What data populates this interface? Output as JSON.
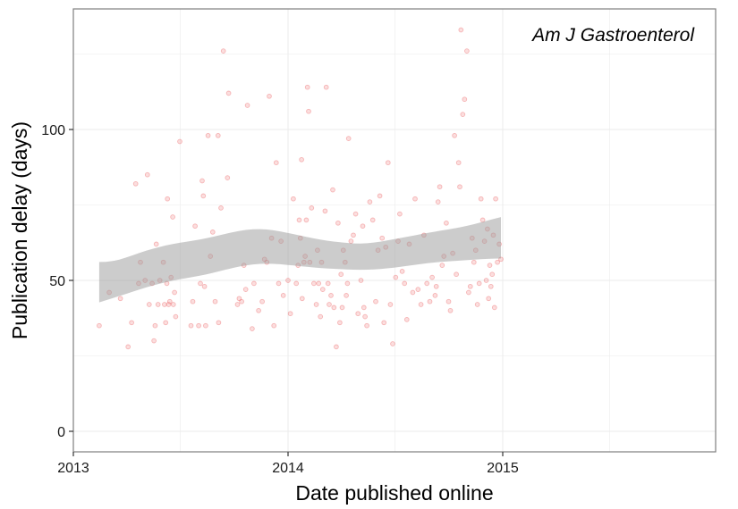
{
  "chart_data": {
    "type": "scatter",
    "annotation": "Am J Gastroenterol",
    "xlabel": "Date published online",
    "ylabel": "Publication delay (days)",
    "x_ticks": [
      {
        "value": "2013-01-01",
        "label": "2013"
      },
      {
        "value": "2014-01-01",
        "label": "2014"
      },
      {
        "value": "2015-01-01",
        "label": "2015"
      }
    ],
    "y_ticks": [
      {
        "value": 0,
        "label": "0"
      },
      {
        "value": 50,
        "label": "50"
      },
      {
        "value": 100,
        "label": "100"
      }
    ],
    "xlim": [
      "2013-01-01",
      "2015-12-31"
    ],
    "ylim": [
      -7,
      140
    ],
    "grid": true,
    "colors": {
      "points": "#e8474a",
      "ribbon": "#999999",
      "panel_border": "#7f7f7f",
      "grid": "#ebebeb"
    },
    "points": [
      [
        "2013-02-14",
        35
      ],
      [
        "2013-03-03",
        46
      ],
      [
        "2013-03-22",
        44
      ],
      [
        "2013-04-04",
        28
      ],
      [
        "2013-04-10",
        36
      ],
      [
        "2013-04-17",
        82
      ],
      [
        "2013-04-22",
        49
      ],
      [
        "2013-04-25",
        56
      ],
      [
        "2013-05-03",
        50
      ],
      [
        "2013-05-07",
        85
      ],
      [
        "2013-05-10",
        42
      ],
      [
        "2013-05-15",
        49
      ],
      [
        "2013-05-18",
        30
      ],
      [
        "2013-05-20",
        35
      ],
      [
        "2013-05-22",
        62
      ],
      [
        "2013-05-25",
        42
      ],
      [
        "2013-05-28",
        50
      ],
      [
        "2013-06-03",
        56
      ],
      [
        "2013-06-05",
        42
      ],
      [
        "2013-06-07",
        36
      ],
      [
        "2013-06-09",
        49
      ],
      [
        "2013-06-10",
        77
      ],
      [
        "2013-06-12",
        42
      ],
      [
        "2013-06-14",
        43
      ],
      [
        "2013-06-16",
        51
      ],
      [
        "2013-06-19",
        71
      ],
      [
        "2013-06-20",
        42
      ],
      [
        "2013-06-22",
        46
      ],
      [
        "2013-06-24",
        38
      ],
      [
        "2013-07-01",
        96
      ],
      [
        "2013-07-20",
        35
      ],
      [
        "2013-07-23",
        43
      ],
      [
        "2013-07-27",
        68
      ],
      [
        "2013-08-02",
        35
      ],
      [
        "2013-08-05",
        49
      ],
      [
        "2013-08-08",
        83
      ],
      [
        "2013-08-10",
        78
      ],
      [
        "2013-08-12",
        48
      ],
      [
        "2013-08-14",
        35
      ],
      [
        "2013-08-18",
        98
      ],
      [
        "2013-08-22",
        58
      ],
      [
        "2013-08-26",
        66
      ],
      [
        "2013-08-30",
        43
      ],
      [
        "2013-09-04",
        98
      ],
      [
        "2013-09-05",
        36
      ],
      [
        "2013-09-09",
        74
      ],
      [
        "2013-09-13",
        126
      ],
      [
        "2013-09-20",
        84
      ],
      [
        "2013-09-22",
        112
      ],
      [
        "2013-10-07",
        42
      ],
      [
        "2013-10-10",
        44
      ],
      [
        "2013-10-14",
        43
      ],
      [
        "2013-10-18",
        55
      ],
      [
        "2013-10-21",
        47
      ],
      [
        "2013-10-24",
        108
      ],
      [
        "2013-11-01",
        34
      ],
      [
        "2013-11-04",
        49
      ],
      [
        "2013-11-12",
        40
      ],
      [
        "2013-11-18",
        43
      ],
      [
        "2013-11-22",
        57
      ],
      [
        "2013-11-26",
        56
      ],
      [
        "2013-11-30",
        111
      ],
      [
        "2013-12-04",
        64
      ],
      [
        "2013-12-08",
        35
      ],
      [
        "2013-12-12",
        89
      ],
      [
        "2013-12-16",
        49
      ],
      [
        "2013-12-20",
        63
      ],
      [
        "2013-12-24",
        45
      ],
      [
        "2014-01-01",
        50
      ],
      [
        "2014-01-05",
        39
      ],
      [
        "2014-01-10",
        77
      ],
      [
        "2014-01-15",
        49
      ],
      [
        "2014-01-18",
        55
      ],
      [
        "2014-01-20",
        70
      ],
      [
        "2014-01-22",
        64
      ],
      [
        "2014-01-24",
        90
      ],
      [
        "2014-01-25",
        44
      ],
      [
        "2014-01-28",
        56
      ],
      [
        "2014-01-30",
        58
      ],
      [
        "2014-02-01",
        70
      ],
      [
        "2014-02-03",
        114
      ],
      [
        "2014-02-05",
        106
      ],
      [
        "2014-02-07",
        56
      ],
      [
        "2014-02-10",
        74
      ],
      [
        "2014-02-14",
        49
      ],
      [
        "2014-02-18",
        42
      ],
      [
        "2014-02-20",
        60
      ],
      [
        "2014-02-22",
        49
      ],
      [
        "2014-02-25",
        38
      ],
      [
        "2014-02-27",
        56
      ],
      [
        "2014-03-01",
        47
      ],
      [
        "2014-03-05",
        73
      ],
      [
        "2014-03-07",
        114
      ],
      [
        "2014-03-10",
        49
      ],
      [
        "2014-03-12",
        42
      ],
      [
        "2014-03-15",
        45
      ],
      [
        "2014-03-18",
        80
      ],
      [
        "2014-03-20",
        41
      ],
      [
        "2014-03-24",
        28
      ],
      [
        "2014-03-27",
        69
      ],
      [
        "2014-03-30",
        36
      ],
      [
        "2014-04-01",
        52
      ],
      [
        "2014-04-03",
        41
      ],
      [
        "2014-04-05",
        60
      ],
      [
        "2014-04-08",
        56
      ],
      [
        "2014-04-10",
        45
      ],
      [
        "2014-04-12",
        49
      ],
      [
        "2014-04-14",
        97
      ],
      [
        "2014-04-18",
        63
      ],
      [
        "2014-04-22",
        65
      ],
      [
        "2014-04-26",
        72
      ],
      [
        "2014-04-30",
        39
      ],
      [
        "2014-05-05",
        50
      ],
      [
        "2014-05-08",
        68
      ],
      [
        "2014-05-10",
        41
      ],
      [
        "2014-05-12",
        38
      ],
      [
        "2014-05-15",
        35
      ],
      [
        "2014-05-20",
        76
      ],
      [
        "2014-05-25",
        70
      ],
      [
        "2014-05-30",
        43
      ],
      [
        "2014-06-03",
        60
      ],
      [
        "2014-06-06",
        78
      ],
      [
        "2014-06-10",
        64
      ],
      [
        "2014-06-13",
        36
      ],
      [
        "2014-06-16",
        61
      ],
      [
        "2014-06-20",
        89
      ],
      [
        "2014-06-24",
        42
      ],
      [
        "2014-06-28",
        29
      ],
      [
        "2014-07-03",
        51
      ],
      [
        "2014-07-07",
        63
      ],
      [
        "2014-07-10",
        72
      ],
      [
        "2014-07-14",
        53
      ],
      [
        "2014-07-18",
        49
      ],
      [
        "2014-07-22",
        37
      ],
      [
        "2014-07-26",
        62
      ],
      [
        "2014-08-01",
        46
      ],
      [
        "2014-08-05",
        77
      ],
      [
        "2014-08-10",
        47
      ],
      [
        "2014-08-15",
        42
      ],
      [
        "2014-08-20",
        65
      ],
      [
        "2014-08-25",
        49
      ],
      [
        "2014-08-30",
        43
      ],
      [
        "2014-09-03",
        51
      ],
      [
        "2014-09-08",
        45
      ],
      [
        "2014-09-10",
        48
      ],
      [
        "2014-09-13",
        76
      ],
      [
        "2014-09-16",
        81
      ],
      [
        "2014-09-20",
        55
      ],
      [
        "2014-09-23",
        58
      ],
      [
        "2014-09-27",
        69
      ],
      [
        "2014-10-01",
        43
      ],
      [
        "2014-10-04",
        40
      ],
      [
        "2014-10-08",
        59
      ],
      [
        "2014-10-11",
        98
      ],
      [
        "2014-10-14",
        52
      ],
      [
        "2014-10-18",
        89
      ],
      [
        "2014-10-20",
        81
      ],
      [
        "2014-10-22",
        133
      ],
      [
        "2014-10-25",
        105
      ],
      [
        "2014-10-28",
        110
      ],
      [
        "2014-11-01",
        126
      ],
      [
        "2014-11-04",
        46
      ],
      [
        "2014-11-07",
        48
      ],
      [
        "2014-11-10",
        64
      ],
      [
        "2014-11-13",
        56
      ],
      [
        "2014-11-16",
        60
      ],
      [
        "2014-11-19",
        42
      ],
      [
        "2014-11-22",
        49
      ],
      [
        "2014-11-25",
        77
      ],
      [
        "2014-11-28",
        70
      ],
      [
        "2014-12-01",
        63
      ],
      [
        "2014-12-04",
        50
      ],
      [
        "2014-12-06",
        67
      ],
      [
        "2014-12-08",
        44
      ],
      [
        "2014-12-10",
        55
      ],
      [
        "2014-12-12",
        48
      ],
      [
        "2014-12-14",
        52
      ],
      [
        "2014-12-16",
        65
      ],
      [
        "2014-12-18",
        41
      ],
      [
        "2014-12-20",
        77
      ],
      [
        "2014-12-23",
        56
      ],
      [
        "2014-12-26",
        62
      ],
      [
        "2014-12-29",
        57
      ]
    ]
  }
}
